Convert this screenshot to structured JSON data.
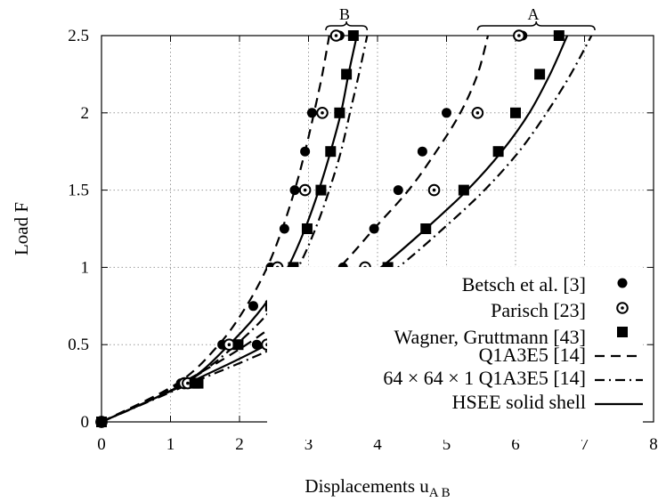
{
  "chart_data": {
    "type": "scatter",
    "title": "",
    "xlabel": "Displacements u",
    "xlabel_sub1": "A",
    "xlabel_sub2": "B",
    "ylabel": "Load F",
    "xlim": [
      0,
      8
    ],
    "ylim": [
      0,
      2.5
    ],
    "xticks": [
      "0",
      "1",
      "2",
      "3",
      "4",
      "5",
      "6",
      "7",
      "8"
    ],
    "yticks": [
      "0",
      "0.5",
      "1",
      "1.5",
      "2",
      "2.5"
    ],
    "grid": "dotted",
    "legend_position": "bottom-right",
    "annotations": [
      {
        "text": "A",
        "x_range": [
          5.45,
          7.15
        ],
        "y": 2.5
      },
      {
        "text": "B",
        "x_range": [
          3.25,
          3.85
        ],
        "y": 2.5
      }
    ],
    "series": [
      {
        "name": "Betsch et al. [3]",
        "kind": "marker",
        "marker": "filled-circle",
        "curves": [
          [
            [
              0,
              0
            ],
            [
              1.15,
              0.25
            ],
            [
              1.75,
              0.5
            ],
            [
              2.2,
              0.75
            ],
            [
              2.45,
              1.0
            ],
            [
              2.65,
              1.25
            ],
            [
              2.8,
              1.5
            ],
            [
              2.95,
              1.75
            ],
            [
              3.05,
              2.0
            ],
            [
              3.45,
              2.5
            ]
          ],
          [
            [
              0,
              0
            ],
            [
              1.2,
              0.25
            ],
            [
              2.25,
              0.5
            ],
            [
              2.98,
              0.75
            ],
            [
              3.5,
              1.0
            ],
            [
              3.95,
              1.25
            ],
            [
              4.3,
              1.5
            ],
            [
              4.65,
              1.75
            ],
            [
              5.0,
              2.0
            ],
            [
              6.1,
              2.5
            ]
          ]
        ]
      },
      {
        "name": "Parisch [23]",
        "kind": "marker",
        "marker": "open-circle",
        "curves": [
          [
            [
              0,
              0
            ],
            [
              1.2,
              0.25
            ],
            [
              1.85,
              0.5
            ],
            [
              2.55,
              1.0
            ],
            [
              2.95,
              1.5
            ],
            [
              3.2,
              2.0
            ],
            [
              3.4,
              2.5
            ]
          ],
          [
            [
              0,
              0
            ],
            [
              1.25,
              0.25
            ],
            [
              2.4,
              0.5
            ],
            [
              3.82,
              1.0
            ],
            [
              4.82,
              1.5
            ],
            [
              5.45,
              2.0
            ],
            [
              6.05,
              2.5
            ]
          ]
        ]
      },
      {
        "name": "Wagner, Gruttmann [43]",
        "kind": "marker",
        "marker": "filled-square",
        "curves": [
          [
            [
              0,
              0
            ],
            [
              1.35,
              0.25
            ],
            [
              1.98,
              0.5
            ],
            [
              2.45,
              0.75
            ],
            [
              2.78,
              1.0
            ],
            [
              2.98,
              1.25
            ],
            [
              3.18,
              1.5
            ],
            [
              3.32,
              1.75
            ],
            [
              3.45,
              2.0
            ],
            [
              3.55,
              2.25
            ],
            [
              3.65,
              2.5
            ]
          ],
          [
            [
              0,
              0
            ],
            [
              1.4,
              0.25
            ],
            [
              2.55,
              0.5
            ],
            [
              3.47,
              0.75
            ],
            [
              4.15,
              1.0
            ],
            [
              4.7,
              1.25
            ],
            [
              5.25,
              1.5
            ],
            [
              5.75,
              1.75
            ],
            [
              6.0,
              2.0
            ],
            [
              6.35,
              2.25
            ],
            [
              6.63,
              2.5
            ]
          ]
        ]
      },
      {
        "name": "Q1A3E5 [14]",
        "kind": "line",
        "dash": "dashed",
        "curves": [
          [
            [
              0,
              0
            ],
            [
              1.1,
              0.25
            ],
            [
              1.7,
              0.5
            ],
            [
              2.1,
              0.75
            ],
            [
              2.4,
              1.0
            ],
            [
              2.62,
              1.25
            ],
            [
              2.8,
              1.5
            ],
            [
              2.95,
              1.75
            ],
            [
              3.08,
              2.0
            ],
            [
              3.2,
              2.25
            ],
            [
              3.3,
              2.5
            ]
          ],
          [
            [
              0,
              0
            ],
            [
              1.15,
              0.25
            ],
            [
              2.1,
              0.5
            ],
            [
              2.85,
              0.75
            ],
            [
              3.45,
              1.0
            ],
            [
              3.95,
              1.25
            ],
            [
              4.45,
              1.5
            ],
            [
              4.85,
              1.75
            ],
            [
              5.2,
              2.0
            ],
            [
              5.45,
              2.25
            ],
            [
              5.6,
              2.5
            ]
          ]
        ]
      },
      {
        "name": "64 × 64 × 1 Q1A3E5 [14]",
        "kind": "line",
        "dash": "dash-dot",
        "curves": [
          [
            [
              0,
              0
            ],
            [
              1.2,
              0.25
            ],
            [
              1.95,
              0.5
            ],
            [
              2.5,
              0.75
            ],
            [
              2.85,
              1.0
            ],
            [
              3.1,
              1.25
            ],
            [
              3.3,
              1.5
            ],
            [
              3.47,
              1.75
            ],
            [
              3.6,
              2.0
            ],
            [
              3.73,
              2.25
            ],
            [
              3.85,
              2.5
            ]
          ],
          [
            [
              0,
              0
            ],
            [
              1.3,
              0.25
            ],
            [
              2.6,
              0.5
            ],
            [
              3.55,
              0.75
            ],
            [
              4.3,
              1.0
            ],
            [
              4.95,
              1.25
            ],
            [
              5.55,
              1.5
            ],
            [
              6.05,
              1.75
            ],
            [
              6.45,
              2.0
            ],
            [
              6.8,
              2.25
            ],
            [
              7.1,
              2.5
            ]
          ]
        ]
      },
      {
        "name": "HSEE solid shell",
        "kind": "line",
        "dash": "solid",
        "curves": [
          [
            [
              0,
              0
            ],
            [
              1.2,
              0.25
            ],
            [
              1.85,
              0.5
            ],
            [
              2.35,
              0.75
            ],
            [
              2.7,
              1.0
            ],
            [
              2.95,
              1.25
            ],
            [
              3.15,
              1.5
            ],
            [
              3.32,
              1.75
            ],
            [
              3.47,
              2.0
            ],
            [
              3.58,
              2.25
            ],
            [
              3.7,
              2.5
            ]
          ],
          [
            [
              0,
              0
            ],
            [
              1.25,
              0.25
            ],
            [
              2.4,
              0.5
            ],
            [
              3.3,
              0.75
            ],
            [
              4.05,
              1.0
            ],
            [
              4.7,
              1.25
            ],
            [
              5.3,
              1.5
            ],
            [
              5.8,
              1.75
            ],
            [
              6.2,
              2.0
            ],
            [
              6.5,
              2.25
            ],
            [
              6.75,
              2.5
            ]
          ]
        ]
      }
    ]
  }
}
